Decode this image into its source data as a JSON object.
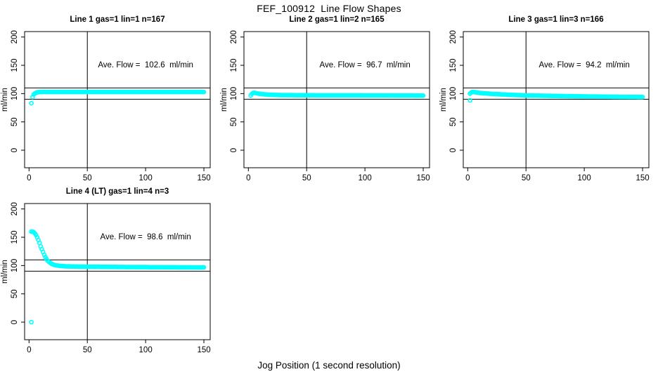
{
  "page": {
    "title": "FEF_100912  Line Flow Shapes",
    "xlabel": "Jog Position (1 second resolution)"
  },
  "chart_data": {
    "type": "scatter",
    "title": "FEF_100912  Line Flow Shapes",
    "xlabel": "Jog Position (1 second resolution)",
    "ylabel": "ml/min",
    "grid": false,
    "point_color": "#00FFFF",
    "point_marker": "open-circle",
    "line_color": "#000000",
    "axes": {
      "xlim": [
        -3.8,
        155.4
      ],
      "ylim": [
        -31,
        209.6
      ],
      "xticks": [
        0,
        50,
        100,
        150
      ],
      "yticks": [
        0,
        50,
        100,
        150,
        200
      ]
    },
    "ref_lines": {
      "horizontal": [
        90,
        110
      ],
      "vertical": [
        50
      ]
    },
    "annotation_anchor": {
      "x": 100,
      "y": 150
    },
    "subplots": [
      {
        "id": "line1",
        "title": "Line 1 gas=1 lin=1 n=167",
        "annotation": "Ave. Flow =  102.6  ml/min",
        "ave_flow": 102.6,
        "n": 167,
        "anchors": [
          [
            3,
            94
          ],
          [
            4,
            98.5
          ],
          [
            5,
            100.5
          ],
          [
            6,
            101.5
          ],
          [
            7,
            102.2
          ],
          [
            9,
            102.8
          ],
          [
            12,
            103
          ],
          [
            150,
            103
          ]
        ],
        "outliers": [
          [
            2,
            83
          ]
        ]
      },
      {
        "id": "line2",
        "title": "Line 2 gas=1 lin=2 n=165",
        "annotation": "Ave. Flow =  96.7  ml/min",
        "ave_flow": 96.7,
        "n": 165,
        "anchors": [
          [
            2,
            96.5
          ],
          [
            3,
            99.5
          ],
          [
            4,
            101
          ],
          [
            5,
            101.3
          ],
          [
            7,
            100.6
          ],
          [
            10,
            99.6
          ],
          [
            14,
            98.6
          ],
          [
            20,
            97.9
          ],
          [
            30,
            97.3
          ],
          [
            60,
            96.9
          ],
          [
            100,
            96.8
          ],
          [
            150,
            96.5
          ]
        ],
        "outliers": []
      },
      {
        "id": "line3",
        "title": "Line 3 gas=1 lin=3 n=166",
        "annotation": "Ave. Flow =  94.2  ml/min",
        "ave_flow": 94.2,
        "n": 166,
        "anchors": [
          [
            2,
            100
          ],
          [
            3,
            102
          ],
          [
            4,
            103
          ],
          [
            6,
            102.6
          ],
          [
            10,
            101.2
          ],
          [
            20,
            99.6
          ],
          [
            35,
            98
          ],
          [
            50,
            96.8
          ],
          [
            70,
            96
          ],
          [
            100,
            95
          ],
          [
            130,
            94.3
          ],
          [
            150,
            94
          ]
        ],
        "outliers": [
          [
            2,
            88
          ]
        ]
      },
      {
        "id": "line4",
        "title": "Line 4 (LT) gas=1 lin=4 n=3",
        "annotation": "Ave. Flow =  98.6  ml/min",
        "ave_flow": 98.6,
        "n": 3,
        "anchors": [
          [
            2,
            160
          ],
          [
            3,
            160
          ],
          [
            4,
            159
          ],
          [
            5,
            157
          ],
          [
            6,
            154
          ],
          [
            7,
            150
          ],
          [
            8,
            145
          ],
          [
            9,
            140
          ],
          [
            10,
            134
          ],
          [
            11,
            129
          ],
          [
            12,
            124
          ],
          [
            13,
            119
          ],
          [
            14,
            115
          ],
          [
            15,
            111.5
          ],
          [
            16,
            108.5
          ],
          [
            17,
            106.5
          ],
          [
            18,
            105
          ],
          [
            19,
            103.5
          ],
          [
            20,
            102.5
          ],
          [
            22,
            101
          ],
          [
            25,
            99.8
          ],
          [
            28,
            99.2
          ],
          [
            32,
            98.6
          ],
          [
            40,
            98.2
          ],
          [
            60,
            97.8
          ],
          [
            90,
            97.3
          ],
          [
            120,
            97
          ],
          [
            150,
            96.7
          ]
        ],
        "outliers": [
          [
            2,
            0
          ]
        ]
      }
    ]
  }
}
